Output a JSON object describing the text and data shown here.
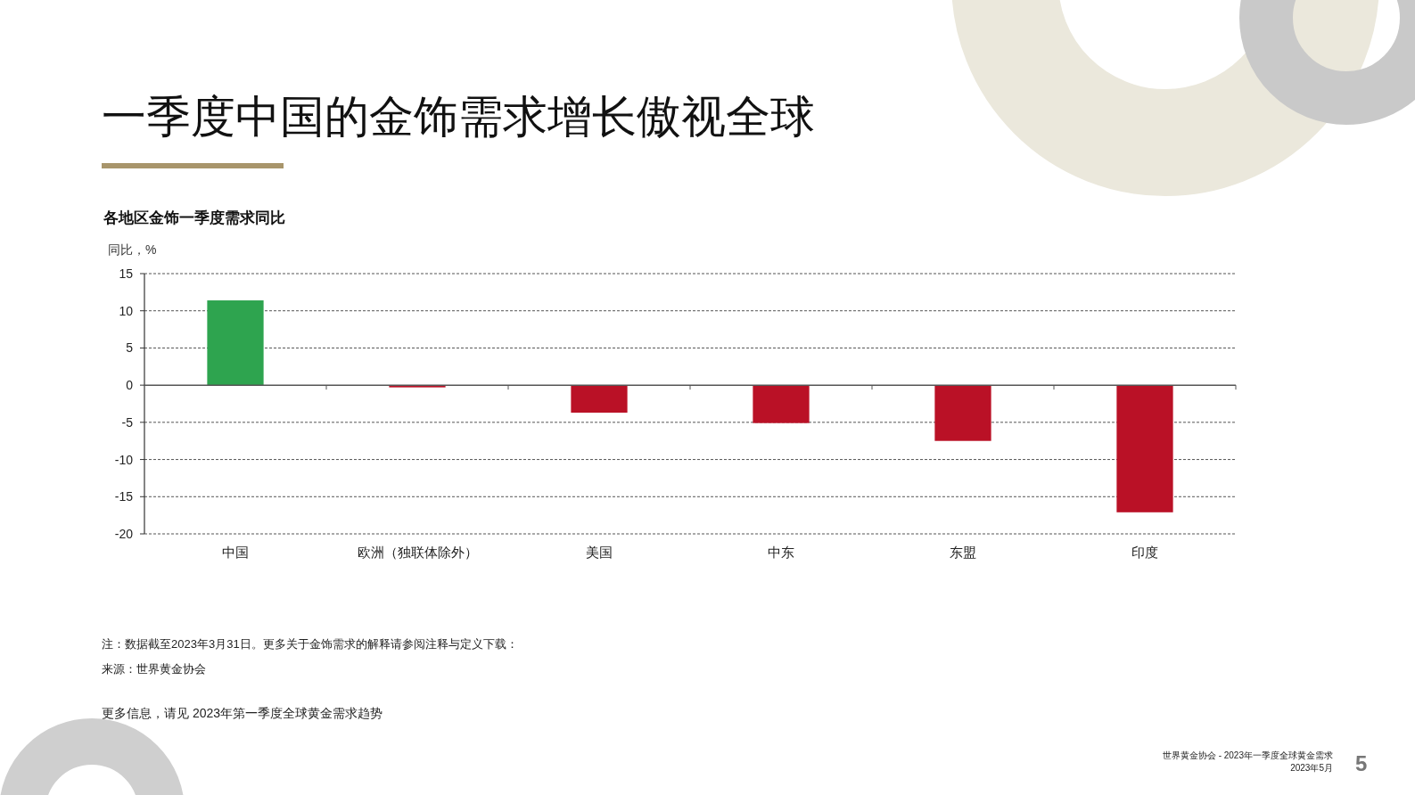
{
  "chart_data": {
    "type": "bar",
    "title": "一季度中国的金饰需求增长傲视全球",
    "subtitle": "各地区金饰一季度需求同比",
    "ylabel": "同比，%",
    "categories": [
      "中国",
      "欧洲（独联体除外）",
      "美国",
      "中东",
      "东盟",
      "印度"
    ],
    "values": [
      11.4,
      -0.3,
      -3.7,
      -5.1,
      -7.5,
      -17.1
    ],
    "colors": [
      "#2ea44f",
      "#ba1126",
      "#ba1126",
      "#ba1126",
      "#ba1126",
      "#ba1126"
    ],
    "ylim": [
      -20,
      15
    ],
    "yticks": [
      -20,
      -15,
      -10,
      -5,
      0,
      5,
      10,
      15
    ],
    "grid": "y",
    "annotations": [
      "注：数据截至2023年3月31日。更多关于金饰需求的解释请参阅注释与定义下载：",
      "来源：世界黄金协会",
      "更多信息，请见 2023年第一季度全球黄金需求趋势",
      "世界黄金协会 - 2023年一季度全球黄金需求",
      "2023年5月",
      "5"
    ]
  }
}
